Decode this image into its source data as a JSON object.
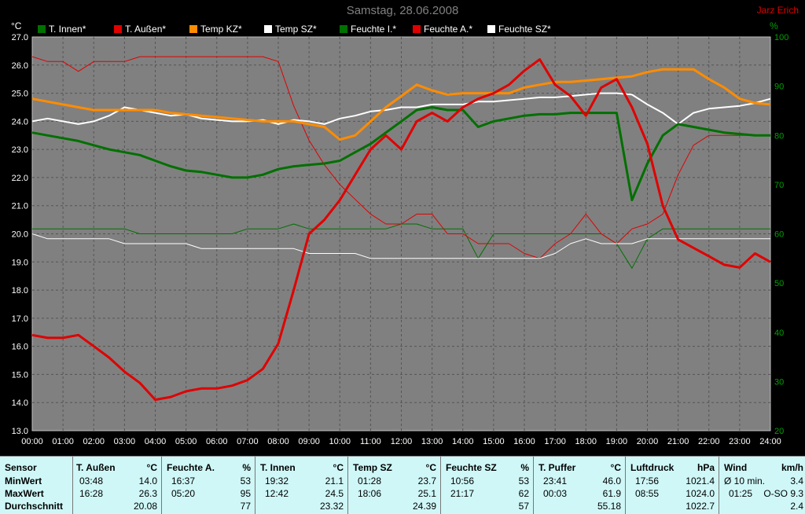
{
  "header": {
    "title": "Samstag, 28.06.2008",
    "author": "Jarz Erich",
    "left_unit": "°C",
    "right_unit": "%"
  },
  "legend": [
    {
      "label": "T. Innen*",
      "color": "#007000"
    },
    {
      "label": "T. Außen*",
      "color": "#e00000"
    },
    {
      "label": "Temp KZ*",
      "color": "#ff8c00"
    },
    {
      "label": "Temp SZ*",
      "color": "#ffffff"
    },
    {
      "label": "Feuchte I.*",
      "color": "#007000"
    },
    {
      "label": "Feuchte A.*",
      "color": "#e00000"
    },
    {
      "label": "Feuchte SZ*",
      "color": "#ffffff"
    }
  ],
  "chart_data": {
    "type": "line",
    "title": "Samstag, 28.06.2008",
    "xlabel": "",
    "ylabel": "°C",
    "y2label": "%",
    "xlim": [
      0,
      24
    ],
    "ylim": [
      13.0,
      27.0
    ],
    "y2lim": [
      20,
      100
    ],
    "grid": true,
    "legend_position": "top",
    "x_ticks": [
      "00:00",
      "01:00",
      "02:00",
      "03:00",
      "04:00",
      "05:00",
      "06:00",
      "07:00",
      "08:00",
      "09:00",
      "10:00",
      "11:00",
      "12:00",
      "13:00",
      "14:00",
      "15:00",
      "16:00",
      "17:00",
      "18:00",
      "19:00",
      "20:00",
      "21:00",
      "22:00",
      "23:00",
      "24:00"
    ],
    "y_ticks": [
      "13.0",
      "14.0",
      "15.0",
      "16.0",
      "17.0",
      "18.0",
      "19.0",
      "20.0",
      "21.0",
      "22.0",
      "23.0",
      "24.0",
      "25.0",
      "26.0",
      "27.0"
    ],
    "y2_ticks": [
      "20",
      "30",
      "40",
      "50",
      "60",
      "70",
      "80",
      "90",
      "100"
    ],
    "x": [
      0,
      0.5,
      1,
      1.5,
      2,
      2.5,
      3,
      3.5,
      4,
      4.5,
      5,
      5.5,
      6,
      6.5,
      7,
      7.5,
      8,
      8.5,
      9,
      9.5,
      10,
      10.5,
      11,
      11.5,
      12,
      12.5,
      13,
      13.5,
      14,
      14.5,
      15,
      15.5,
      16,
      16.5,
      17,
      17.5,
      18,
      18.5,
      19,
      19.5,
      20,
      20.5,
      21,
      21.5,
      22,
      22.5,
      23,
      23.5,
      24
    ],
    "series": [
      {
        "name": "T. Innen*",
        "axis": "left",
        "color": "#007000",
        "width": 3,
        "values": [
          23.6,
          23.5,
          23.4,
          23.3,
          23.15,
          23.0,
          22.9,
          22.8,
          22.6,
          22.4,
          22.25,
          22.2,
          22.1,
          22.0,
          22.0,
          22.1,
          22.3,
          22.4,
          22.45,
          22.5,
          22.6,
          22.9,
          23.2,
          23.6,
          24.0,
          24.4,
          24.5,
          24.4,
          24.4,
          23.8,
          24.0,
          24.1,
          24.2,
          24.25,
          24.25,
          24.3,
          24.3,
          24.3,
          24.3,
          21.2,
          22.5,
          23.5,
          23.9,
          23.8,
          23.7,
          23.6,
          23.55,
          23.5,
          23.5
        ]
      },
      {
        "name": "T. Außen*",
        "axis": "left",
        "color": "#e00000",
        "width": 3,
        "values": [
          16.4,
          16.3,
          16.3,
          16.4,
          16.0,
          15.6,
          15.1,
          14.7,
          14.1,
          14.2,
          14.4,
          14.5,
          14.5,
          14.6,
          14.8,
          15.2,
          16.1,
          18.0,
          20.0,
          20.5,
          21.2,
          22.1,
          23.0,
          23.5,
          23.0,
          24.0,
          24.3,
          24.0,
          24.5,
          24.8,
          25.0,
          25.3,
          25.8,
          26.2,
          25.3,
          24.9,
          24.2,
          25.2,
          25.5,
          24.5,
          23.2,
          21.0,
          19.8,
          19.5,
          19.2,
          18.9,
          18.8,
          19.3,
          19.0
        ]
      },
      {
        "name": "Temp KZ*",
        "axis": "left",
        "color": "#ff8c00",
        "width": 3,
        "values": [
          24.8,
          24.7,
          24.6,
          24.5,
          24.4,
          24.4,
          24.4,
          24.4,
          24.4,
          24.3,
          24.25,
          24.2,
          24.15,
          24.1,
          24.05,
          24.0,
          24.0,
          24.0,
          23.9,
          23.8,
          23.35,
          23.5,
          24.0,
          24.5,
          24.9,
          25.3,
          25.1,
          24.95,
          25.0,
          25.0,
          25.0,
          25.0,
          25.2,
          25.3,
          25.4,
          25.4,
          25.45,
          25.5,
          25.55,
          25.6,
          25.75,
          25.85,
          25.85,
          25.85,
          25.5,
          25.2,
          24.8,
          24.65,
          24.6
        ]
      },
      {
        "name": "Temp SZ*",
        "axis": "left",
        "color": "#ffffff",
        "width": 2,
        "values": [
          24.0,
          24.1,
          24.0,
          23.9,
          24.0,
          24.2,
          24.5,
          24.4,
          24.3,
          24.2,
          24.25,
          24.1,
          24.05,
          24.0,
          24.0,
          24.05,
          23.9,
          24.05,
          24.0,
          23.9,
          24.1,
          24.2,
          24.35,
          24.4,
          24.5,
          24.5,
          24.6,
          24.6,
          24.6,
          24.7,
          24.7,
          24.75,
          24.8,
          24.85,
          24.85,
          24.9,
          24.95,
          25.0,
          25.0,
          24.95,
          24.6,
          24.3,
          23.9,
          24.3,
          24.45,
          24.5,
          24.55,
          24.65,
          24.8
        ]
      },
      {
        "name": "Feuchte I.*",
        "axis": "right",
        "color": "#007000",
        "width": 1,
        "values": [
          61,
          61,
          61,
          61,
          61,
          61,
          61,
          60,
          60,
          60,
          60,
          60,
          60,
          60,
          61,
          61,
          61,
          62,
          61,
          61,
          61,
          61,
          61,
          61,
          62,
          62,
          61,
          61,
          61,
          55,
          60,
          60,
          60,
          60,
          60,
          60,
          60,
          60,
          58,
          53,
          59,
          61,
          61,
          61,
          61,
          61,
          61,
          61,
          61
        ]
      },
      {
        "name": "Feuchte A.*",
        "axis": "right",
        "color": "#e00000",
        "width": 1,
        "values": [
          96,
          95,
          95,
          93,
          95,
          95,
          95,
          96,
          96,
          96,
          96,
          96,
          96,
          96,
          96,
          96,
          95,
          86,
          79,
          74,
          70,
          67,
          64,
          62,
          62,
          64,
          64,
          60,
          60,
          58,
          58,
          58,
          56,
          55,
          58,
          60,
          64,
          60,
          58,
          61,
          62,
          64,
          72,
          78,
          80,
          80,
          80,
          80,
          80
        ]
      },
      {
        "name": "Feuchte SZ*",
        "axis": "right",
        "color": "#ffffff",
        "width": 1,
        "values": [
          60,
          59,
          59,
          59,
          59,
          59,
          58,
          58,
          58,
          58,
          58,
          57,
          57,
          57,
          57,
          57,
          57,
          57,
          56,
          56,
          56,
          56,
          55,
          55,
          55,
          55,
          55,
          55,
          55,
          55,
          55,
          55,
          55,
          55,
          56,
          58,
          59,
          58,
          58,
          58,
          59,
          59,
          59,
          59,
          59,
          59,
          59,
          59,
          59
        ]
      }
    ]
  },
  "stats": {
    "sensor": {
      "title": "Sensor",
      "rows": [
        "MinWert",
        "MaxWert",
        "Durchschnitt"
      ]
    },
    "blocks": [
      {
        "title": "T. Außen",
        "unit": "°C",
        "rows": [
          {
            "time": "03:48",
            "value": "14.0"
          },
          {
            "time": "16:28",
            "value": "26.3"
          },
          {
            "time": "",
            "value": "20.08"
          }
        ]
      },
      {
        "title": "Feuchte A.",
        "unit": "%",
        "rows": [
          {
            "time": "16:37",
            "value": "53"
          },
          {
            "time": "05:20",
            "value": "95"
          },
          {
            "time": "",
            "value": "77"
          }
        ]
      },
      {
        "title": "T. Innen",
        "unit": "°C",
        "rows": [
          {
            "time": "19:32",
            "value": "21.1"
          },
          {
            "time": "12:42",
            "value": "24.5"
          },
          {
            "time": "",
            "value": "23.32"
          }
        ]
      },
      {
        "title": "Temp SZ",
        "unit": "°C",
        "rows": [
          {
            "time": "01:28",
            "value": "23.7"
          },
          {
            "time": "18:06",
            "value": "25.1"
          },
          {
            "time": "",
            "value": "24.39"
          }
        ]
      },
      {
        "title": "Feuchte SZ",
        "unit": "%",
        "rows": [
          {
            "time": "10:56",
            "value": "53"
          },
          {
            "time": "21:17",
            "value": "62"
          },
          {
            "time": "",
            "value": "57"
          }
        ]
      },
      {
        "title": "T. Puffer",
        "unit": "°C",
        "rows": [
          {
            "time": "23:41",
            "value": "46.0"
          },
          {
            "time": "00:03",
            "value": "61.9"
          },
          {
            "time": "",
            "value": "55.18"
          }
        ]
      },
      {
        "title": "Luftdruck",
        "unit": "hPa",
        "rows": [
          {
            "time": "17:56",
            "value": "1021.4"
          },
          {
            "time": "08:55",
            "value": "1024.0"
          },
          {
            "time": "",
            "value": "1022.7"
          }
        ]
      },
      {
        "title": "Wind",
        "unit": "km/h",
        "rows": [
          {
            "time": "Ø 10 min.",
            "value": "3.4"
          },
          {
            "time": "01:25",
            "value": "O-SO 9.3"
          },
          {
            "time": "",
            "value": "2.4"
          }
        ]
      }
    ]
  }
}
